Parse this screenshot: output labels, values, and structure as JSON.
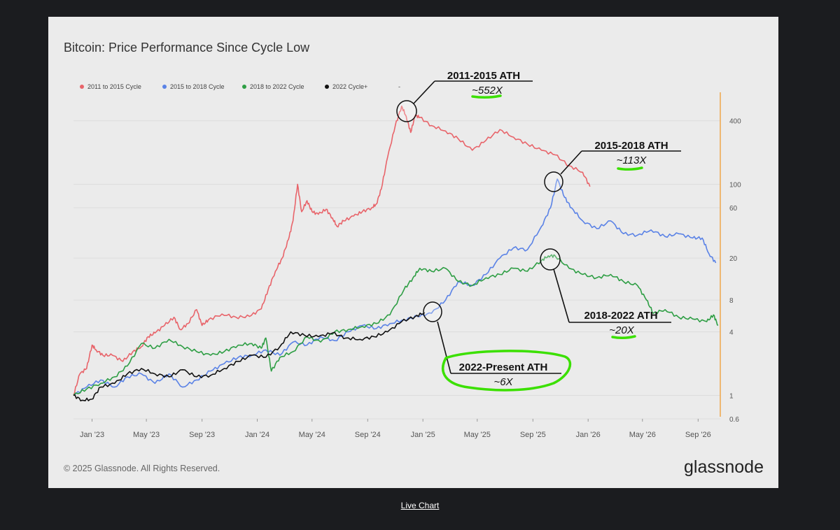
{
  "footer": {
    "link_label": "Live Chart"
  },
  "chart_data": {
    "type": "line",
    "title": "Bitcoin: Price Performance Since Cycle Low",
    "copyright": "© 2025 Glassnode. All Rights Reserved.",
    "brand": "glassnode",
    "yscale": "log",
    "ylim": [
      0.6,
      700
    ],
    "legend_position": "top-left",
    "grid": true,
    "x_ticks": [
      "Jan '23",
      "May '23",
      "Sep '23",
      "Jan '24",
      "May '24",
      "Sep '24",
      "Jan '25",
      "May '25",
      "Sep '25",
      "Jan '26",
      "May '26",
      "Sep '26"
    ],
    "y_ticks": [
      0.6,
      1,
      4,
      8,
      20,
      60,
      100,
      400
    ],
    "y_tick_labels": [
      "0.6",
      "1",
      "4",
      "8",
      "20",
      "60",
      "100",
      "400"
    ],
    "legend": [
      {
        "name": "2011 to 2015 Cycle",
        "color": "#e8646a"
      },
      {
        "name": "2015 to 2018 Cycle",
        "color": "#5a82e6"
      },
      {
        "name": "2018 to 2022 Cycle",
        "color": "#2e9e44"
      },
      {
        "name": "2022 Cycle+",
        "color": "#111111"
      },
      {
        "name": "-",
        "color": ""
      }
    ],
    "series": [
      {
        "name": "2011 to 2015 Cycle",
        "color": "#e8646a",
        "points": [
          [
            "2022-11-21",
            1.0
          ],
          [
            "2022-12-05",
            1.6
          ],
          [
            "2022-12-20",
            1.8
          ],
          [
            "2023-01-01",
            3.0
          ],
          [
            "2023-01-10",
            2.7
          ],
          [
            "2023-01-25",
            2.4
          ],
          [
            "2023-02-15",
            2.4
          ],
          [
            "2023-03-10",
            2.1
          ],
          [
            "2023-04-01",
            2.6
          ],
          [
            "2023-04-20",
            2.9
          ],
          [
            "2023-05-05",
            3.6
          ],
          [
            "2023-05-20",
            3.9
          ],
          [
            "2023-06-10",
            4.6
          ],
          [
            "2023-07-01",
            5.5
          ],
          [
            "2023-07-15",
            4.2
          ],
          [
            "2023-08-01",
            4.8
          ],
          [
            "2023-08-20",
            6.5
          ],
          [
            "2023-09-01",
            4.6
          ],
          [
            "2023-09-15",
            5.2
          ],
          [
            "2023-10-15",
            5.9
          ],
          [
            "2023-11-15",
            5.5
          ],
          [
            "2023-12-15",
            5.6
          ],
          [
            "2024-01-10",
            6.6
          ],
          [
            "2024-01-25",
            10
          ],
          [
            "2024-02-10",
            15
          ],
          [
            "2024-02-25",
            20
          ],
          [
            "2024-03-10",
            30
          ],
          [
            "2024-03-20",
            45
          ],
          [
            "2024-03-30",
            100
          ],
          [
            "2024-04-08",
            55
          ],
          [
            "2024-04-20",
            70
          ],
          [
            "2024-05-01",
            55
          ],
          [
            "2024-05-15",
            52
          ],
          [
            "2024-06-01",
            58
          ],
          [
            "2024-06-15",
            48
          ],
          [
            "2024-06-25",
            40
          ],
          [
            "2024-07-10",
            45
          ],
          [
            "2024-08-01",
            50
          ],
          [
            "2024-08-20",
            55
          ],
          [
            "2024-09-10",
            60
          ],
          [
            "2024-09-20",
            65
          ],
          [
            "2024-10-01",
            90
          ],
          [
            "2024-10-15",
            180
          ],
          [
            "2024-11-01",
            360
          ],
          [
            "2024-11-15",
            550
          ],
          [
            "2024-11-25",
            440
          ],
          [
            "2024-12-05",
            310
          ],
          [
            "2024-12-15",
            450
          ],
          [
            "2024-12-25",
            430
          ],
          [
            "2025-01-20",
            360
          ],
          [
            "2025-02-20",
            320
          ],
          [
            "2025-03-20",
            270
          ],
          [
            "2025-04-20",
            210
          ],
          [
            "2025-05-20",
            260
          ],
          [
            "2025-06-20",
            330
          ],
          [
            "2025-07-20",
            280
          ],
          [
            "2025-08-20",
            240
          ],
          [
            "2025-09-20",
            210
          ],
          [
            "2025-10-20",
            190
          ],
          [
            "2025-11-20",
            150
          ],
          [
            "2025-12-20",
            130
          ],
          [
            "2026-01-05",
            95
          ]
        ]
      },
      {
        "name": "2015 to 2018 Cycle",
        "color": "#5a82e6",
        "points": [
          [
            "2022-11-21",
            1.0
          ],
          [
            "2022-12-20",
            1.2
          ],
          [
            "2023-01-20",
            1.4
          ],
          [
            "2023-02-20",
            1.2
          ],
          [
            "2023-03-20",
            1.5
          ],
          [
            "2023-04-20",
            1.6
          ],
          [
            "2023-05-20",
            1.3
          ],
          [
            "2023-06-20",
            1.6
          ],
          [
            "2023-07-20",
            1.2
          ],
          [
            "2023-08-20",
            1.4
          ],
          [
            "2023-09-20",
            1.7
          ],
          [
            "2023-10-20",
            2.0
          ],
          [
            "2023-11-20",
            2.3
          ],
          [
            "2023-12-20",
            2.4
          ],
          [
            "2024-01-20",
            2.7
          ],
          [
            "2024-02-20",
            2.4
          ],
          [
            "2024-03-20",
            3.2
          ],
          [
            "2024-04-20",
            3.0
          ],
          [
            "2024-05-20",
            3.6
          ],
          [
            "2024-06-20",
            3.3
          ],
          [
            "2024-07-20",
            4.0
          ],
          [
            "2024-08-20",
            4.6
          ],
          [
            "2024-09-20",
            4.3
          ],
          [
            "2024-10-20",
            4.8
          ],
          [
            "2024-11-20",
            5.2
          ],
          [
            "2024-12-20",
            5.6
          ],
          [
            "2025-01-20",
            6.0
          ],
          [
            "2025-02-20",
            8.0
          ],
          [
            "2025-03-20",
            12
          ],
          [
            "2025-04-20",
            11
          ],
          [
            "2025-05-20",
            14
          ],
          [
            "2025-06-20",
            20
          ],
          [
            "2025-07-20",
            25
          ],
          [
            "2025-08-20",
            24
          ],
          [
            "2025-09-20",
            40
          ],
          [
            "2025-10-10",
            60
          ],
          [
            "2025-10-25",
            112
          ],
          [
            "2025-11-10",
            75
          ],
          [
            "2025-11-25",
            60
          ],
          [
            "2025-12-20",
            45
          ],
          [
            "2026-01-20",
            38
          ],
          [
            "2026-02-20",
            45
          ],
          [
            "2026-03-20",
            34
          ],
          [
            "2026-04-20",
            33
          ],
          [
            "2026-05-20",
            37
          ],
          [
            "2026-06-20",
            32
          ],
          [
            "2026-07-20",
            34
          ],
          [
            "2026-08-20",
            31
          ],
          [
            "2026-09-10",
            31
          ],
          [
            "2026-09-25",
            22
          ],
          [
            "2026-10-10",
            18
          ]
        ]
      },
      {
        "name": "2018 to 2022 Cycle",
        "color": "#2e9e44",
        "points": [
          [
            "2022-11-21",
            1.0
          ],
          [
            "2022-12-20",
            1.15
          ],
          [
            "2023-01-20",
            1.3
          ],
          [
            "2023-02-20",
            1.5
          ],
          [
            "2023-03-20",
            1.9
          ],
          [
            "2023-04-20",
            3.1
          ],
          [
            "2023-05-20",
            2.8
          ],
          [
            "2023-06-20",
            3.4
          ],
          [
            "2023-07-20",
            2.9
          ],
          [
            "2023-08-20",
            2.6
          ],
          [
            "2023-09-20",
            2.4
          ],
          [
            "2023-10-20",
            2.6
          ],
          [
            "2023-11-20",
            3.0
          ],
          [
            "2023-12-20",
            3.1
          ],
          [
            "2024-01-10",
            2.8
          ],
          [
            "2024-01-20",
            3.5
          ],
          [
            "2024-02-01",
            1.7
          ],
          [
            "2024-02-20",
            2.3
          ],
          [
            "2024-03-20",
            2.6
          ],
          [
            "2024-04-20",
            3.6
          ],
          [
            "2024-05-20",
            3.2
          ],
          [
            "2024-06-20",
            4.0
          ],
          [
            "2024-07-20",
            4.2
          ],
          [
            "2024-08-20",
            4.5
          ],
          [
            "2024-09-20",
            4.8
          ],
          [
            "2024-10-20",
            5.8
          ],
          [
            "2024-11-20",
            10
          ],
          [
            "2024-12-10",
            13
          ],
          [
            "2024-12-25",
            16
          ],
          [
            "2025-01-20",
            15
          ],
          [
            "2025-02-20",
            16
          ],
          [
            "2025-03-20",
            12
          ],
          [
            "2025-04-20",
            11
          ],
          [
            "2025-05-20",
            13
          ],
          [
            "2025-06-20",
            14
          ],
          [
            "2025-07-20",
            16
          ],
          [
            "2025-08-20",
            15
          ],
          [
            "2025-09-20",
            19
          ],
          [
            "2025-10-05",
            21
          ],
          [
            "2025-10-20",
            21
          ],
          [
            "2025-11-20",
            16
          ],
          [
            "2025-12-20",
            14
          ],
          [
            "2026-01-20",
            13
          ],
          [
            "2026-02-20",
            14
          ],
          [
            "2026-03-20",
            12
          ],
          [
            "2026-04-20",
            11
          ],
          [
            "2026-05-10",
            8
          ],
          [
            "2026-05-25",
            6
          ],
          [
            "2026-06-20",
            6.5
          ],
          [
            "2026-07-20",
            5.5
          ],
          [
            "2026-08-20",
            5.3
          ],
          [
            "2026-09-20",
            5.0
          ],
          [
            "2026-10-05",
            5.8
          ],
          [
            "2026-10-15",
            4.6
          ]
        ]
      },
      {
        "name": "2022 Cycle+",
        "color": "#111111",
        "points": [
          [
            "2022-11-21",
            1.0
          ],
          [
            "2022-12-10",
            0.9
          ],
          [
            "2022-12-31",
            0.92
          ],
          [
            "2023-01-20",
            1.2
          ],
          [
            "2023-02-20",
            1.3
          ],
          [
            "2023-03-20",
            1.6
          ],
          [
            "2023-04-20",
            1.8
          ],
          [
            "2023-05-20",
            1.6
          ],
          [
            "2023-06-20",
            1.5
          ],
          [
            "2023-07-20",
            1.75
          ],
          [
            "2023-08-20",
            1.5
          ],
          [
            "2023-09-20",
            1.55
          ],
          [
            "2023-10-20",
            1.8
          ],
          [
            "2023-11-20",
            2.1
          ],
          [
            "2023-12-20",
            2.4
          ],
          [
            "2024-01-20",
            2.3
          ],
          [
            "2024-02-20",
            2.9
          ],
          [
            "2024-03-15",
            4.0
          ],
          [
            "2024-04-15",
            3.7
          ],
          [
            "2024-05-15",
            3.6
          ],
          [
            "2024-06-15",
            3.9
          ],
          [
            "2024-07-15",
            3.5
          ],
          [
            "2024-08-15",
            3.4
          ],
          [
            "2024-09-15",
            3.6
          ],
          [
            "2024-10-15",
            4.0
          ],
          [
            "2024-11-15",
            5.0
          ],
          [
            "2024-12-15",
            5.6
          ],
          [
            "2025-01-05",
            6.1
          ]
        ]
      }
    ],
    "annotations": [
      {
        "title": "2011-2015 ATH",
        "value": "~552X"
      },
      {
        "title": "2015-2018 ATH",
        "value": "~113X"
      },
      {
        "title": "2018-2022 ATH",
        "value": "~20X"
      },
      {
        "title": "2022-Present ATH",
        "value": "~6X"
      }
    ]
  }
}
